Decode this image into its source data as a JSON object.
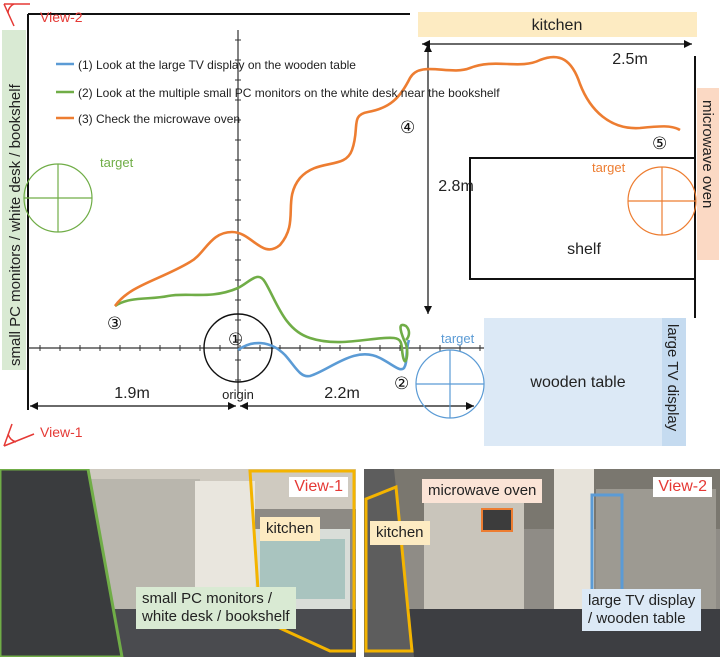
{
  "map": {
    "view2_label": "View-2",
    "view1_label": "View-1",
    "kitchen_label": "kitchen",
    "microwave_label": "microwave oven",
    "shelf_label": "shelf",
    "wooden_table_label": "wooden table",
    "tv_label": "large TV display",
    "monitors_label": "small PC monitors / white desk / bookshelf",
    "target_label": "target",
    "origin_label": "origin",
    "dim_25": "2.5m",
    "dim_28": "2.8m",
    "dim_19": "1.9m",
    "dim_22": "2.2m",
    "waypoints": [
      "①",
      "②",
      "③",
      "④",
      "⑤"
    ],
    "legend": [
      {
        "text": "(1) Look at the large TV display on the wooden table",
        "color": "#5b9bd5"
      },
      {
        "text": "(2) Look at the multiple small PC monitors on the white desk near the bookshelf",
        "color": "#70ad47"
      },
      {
        "text": "(3) Check the microwave oven",
        "color": "#ed7d31"
      }
    ],
    "colors": {
      "blue": "#5b9bd5",
      "green": "#70ad47",
      "orange": "#ed7d31",
      "red": "#e53935"
    }
  },
  "photos": {
    "view1": {
      "tag": "View-1",
      "kitchen": "kitchen",
      "monitors": "small PC monitors /\nwhite desk / bookshelf"
    },
    "view2": {
      "tag": "View-2",
      "microwave": "microwave oven",
      "kitchen": "kitchen",
      "tv": "large TV display\n/ wooden table"
    }
  }
}
